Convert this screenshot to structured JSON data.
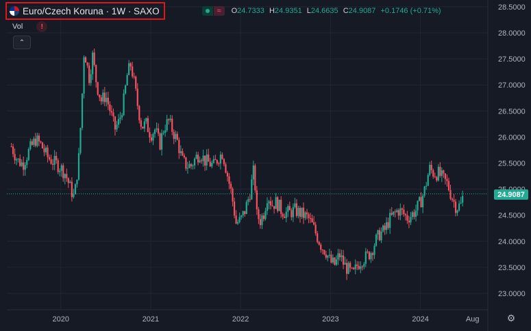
{
  "header": {
    "title": "Euro/Czech Koruna · 1W · SAXO",
    "status_icon": "market-open-dot",
    "wave_glyph": "≈",
    "ohlc": {
      "o_label": "O",
      "o_value": "24.7333",
      "h_label": "H",
      "h_value": "24.9351",
      "l_label": "L",
      "l_value": "24.6635",
      "c_label": "C",
      "c_value": "24.9087",
      "change": "+0.1746 (+0.71%)"
    }
  },
  "volume": {
    "label": "Vol",
    "alert_glyph": "!"
  },
  "collapse_glyph": "⌃",
  "current_price": "24.9087",
  "settings_glyph": "⚙",
  "colors": {
    "background": "#161a25",
    "grid": "#232632",
    "up": "#22ab94",
    "down": "#f7525f",
    "highlight": "#e0161d"
  },
  "chart_data": {
    "type": "candlestick",
    "timeframe": "1W",
    "y_ticks": [
      "28.5000",
      "28.0000",
      "27.5000",
      "27.0000",
      "26.5000",
      "26.0000",
      "25.5000",
      "25.0000",
      "24.5000",
      "24.0000",
      "23.5000",
      "23.0000"
    ],
    "ylim": [
      22.8,
      28.6
    ],
    "x_ticks": [
      "2020",
      "2021",
      "2022",
      "2023",
      "2024",
      "Aug"
    ],
    "x_tick_dates": [
      2020.0,
      2021.0,
      2022.0,
      2023.0,
      2024.0,
      2024.58
    ],
    "xlim": [
      2019.4,
      2024.75
    ],
    "grid": true,
    "last_price": 24.9087,
    "close_series": [
      [
        2019.45,
        25.82
      ],
      [
        2019.52,
        25.55
      ],
      [
        2019.58,
        25.48
      ],
      [
        2019.65,
        25.75
      ],
      [
        2019.72,
        25.95
      ],
      [
        2019.78,
        25.85
      ],
      [
        2019.85,
        25.62
      ],
      [
        2019.92,
        25.52
      ],
      [
        2019.98,
        25.45
      ],
      [
        2020.05,
        25.3
      ],
      [
        2020.1,
        25.05
      ],
      [
        2020.15,
        24.82
      ],
      [
        2020.2,
        25.6
      ],
      [
        2020.23,
        26.5
      ],
      [
        2020.26,
        27.7
      ],
      [
        2020.29,
        27.4
      ],
      [
        2020.32,
        27.1
      ],
      [
        2020.35,
        27.6
      ],
      [
        2020.4,
        27.0
      ],
      [
        2020.45,
        26.7
      ],
      [
        2020.5,
        26.8
      ],
      [
        2020.55,
        26.5
      ],
      [
        2020.6,
        26.15
      ],
      [
        2020.65,
        26.3
      ],
      [
        2020.7,
        26.7
      ],
      [
        2020.74,
        27.2
      ],
      [
        2020.78,
        27.4
      ],
      [
        2020.82,
        27.0
      ],
      [
        2020.86,
        26.55
      ],
      [
        2020.9,
        26.2
      ],
      [
        2020.95,
        26.25
      ],
      [
        2021.0,
        26.05
      ],
      [
        2021.05,
        26.15
      ],
      [
        2021.1,
        25.85
      ],
      [
        2021.15,
        26.2
      ],
      [
        2021.2,
        26.3
      ],
      [
        2021.25,
        26.1
      ],
      [
        2021.3,
        25.9
      ],
      [
        2021.35,
        25.55
      ],
      [
        2021.4,
        25.45
      ],
      [
        2021.45,
        25.45
      ],
      [
        2021.5,
        25.6
      ],
      [
        2021.55,
        25.7
      ],
      [
        2021.6,
        25.55
      ],
      [
        2021.65,
        25.5
      ],
      [
        2021.7,
        25.45
      ],
      [
        2021.75,
        25.6
      ],
      [
        2021.8,
        25.7
      ],
      [
        2021.85,
        25.3
      ],
      [
        2021.9,
        24.9
      ],
      [
        2021.95,
        24.35
      ],
      [
        2022.0,
        24.4
      ],
      [
        2022.05,
        24.6
      ],
      [
        2022.1,
        24.9
      ],
      [
        2022.15,
        25.4
      ],
      [
        2022.18,
        24.5
      ],
      [
        2022.22,
        24.4
      ],
      [
        2022.26,
        24.55
      ],
      [
        2022.3,
        24.9
      ],
      [
        2022.35,
        24.7
      ],
      [
        2022.4,
        24.75
      ],
      [
        2022.45,
        24.6
      ],
      [
        2022.5,
        24.55
      ],
      [
        2022.55,
        24.55
      ],
      [
        2022.6,
        24.6
      ],
      [
        2022.65,
        24.55
      ],
      [
        2022.7,
        24.5
      ],
      [
        2022.75,
        24.45
      ],
      [
        2022.8,
        24.3
      ],
      [
        2022.85,
        24.1
      ],
      [
        2022.9,
        23.9
      ],
      [
        2022.95,
        23.8
      ],
      [
        2023.0,
        23.6
      ],
      [
        2023.05,
        23.55
      ],
      [
        2023.1,
        23.75
      ],
      [
        2023.15,
        23.55
      ],
      [
        2023.2,
        23.45
      ],
      [
        2023.25,
        23.35
      ],
      [
        2023.3,
        23.55
      ],
      [
        2023.35,
        23.65
      ],
      [
        2023.4,
        23.7
      ],
      [
        2023.45,
        23.8
      ],
      [
        2023.5,
        24.0
      ],
      [
        2023.55,
        24.15
      ],
      [
        2023.6,
        24.2
      ],
      [
        2023.65,
        24.4
      ],
      [
        2023.7,
        24.5
      ],
      [
        2023.75,
        24.6
      ],
      [
        2023.8,
        24.55
      ],
      [
        2023.85,
        24.45
      ],
      [
        2023.9,
        24.5
      ],
      [
        2023.95,
        24.6
      ],
      [
        2024.0,
        24.75
      ],
      [
        2024.05,
        25.0
      ],
      [
        2024.1,
        25.4
      ],
      [
        2024.15,
        25.3
      ],
      [
        2024.2,
        25.3
      ],
      [
        2024.25,
        25.2
      ],
      [
        2024.3,
        25.1
      ],
      [
        2024.35,
        24.85
      ],
      [
        2024.4,
        24.65
      ],
      [
        2024.45,
        24.7
      ],
      [
        2024.48,
        24.91
      ]
    ]
  }
}
